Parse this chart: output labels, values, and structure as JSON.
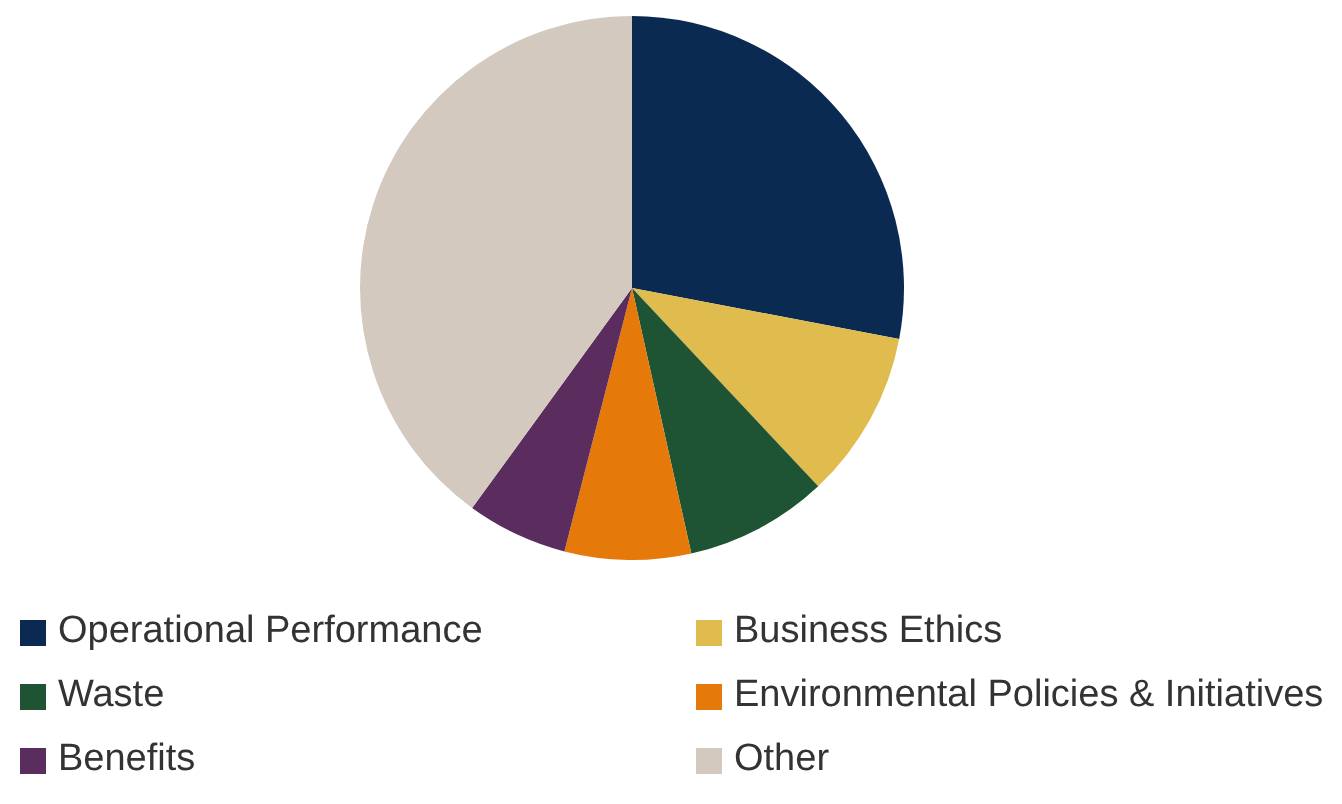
{
  "chart_data": {
    "type": "pie",
    "categories": [
      "Operational Performance",
      "Business Ethics",
      "Waste",
      "Environmental Policies & Initiatives",
      "Benefits",
      "Other"
    ],
    "values": [
      28,
      10,
      8.5,
      7.5,
      6,
      40
    ],
    "colors": [
      "#0b2a52",
      "#e0bb4d",
      "#1e5433",
      "#e57a0a",
      "#5b2d5e",
      "#d3c9bf"
    ],
    "legend": "bottom"
  }
}
